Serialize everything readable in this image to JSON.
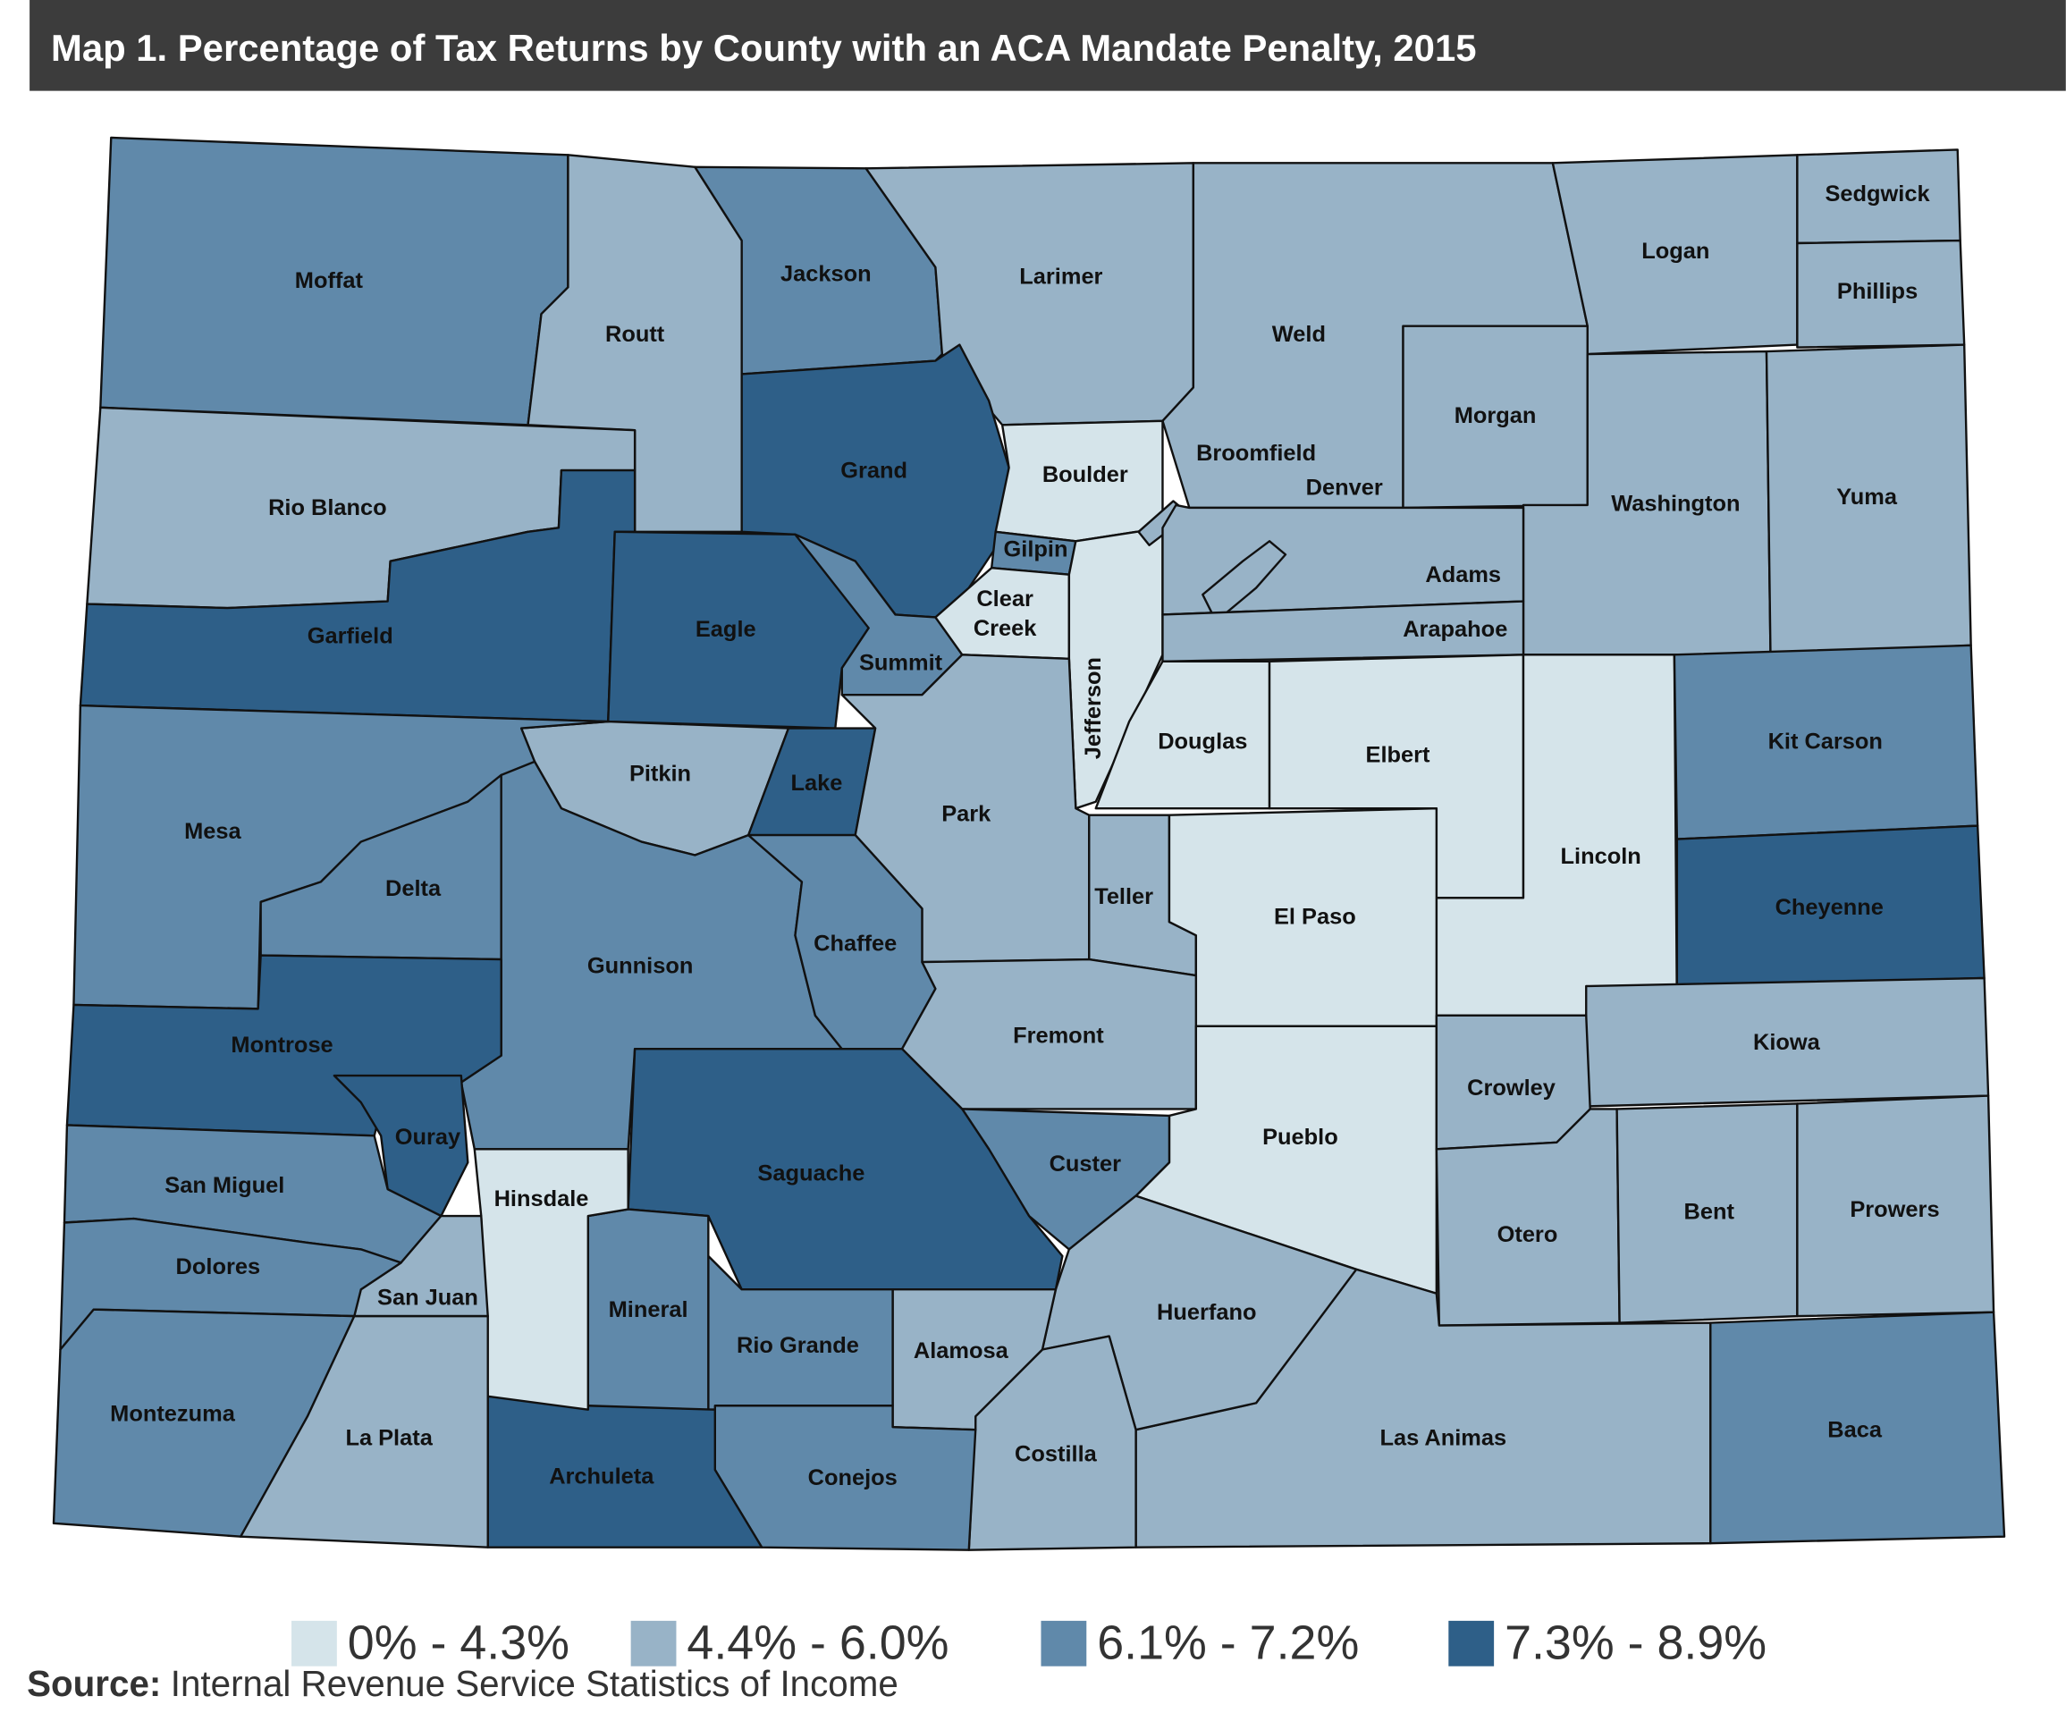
{
  "header": {
    "title": "Map 1. Percentage of Tax Returns by County with an ACA Mandate Penalty, 2015"
  },
  "legend": {
    "items": [
      {
        "label": "0% - 4.3%",
        "color": "#d5e4ea"
      },
      {
        "label": "4.4% - 6.0%",
        "color": "#98b3c7"
      },
      {
        "label": "6.1% - 7.2%",
        "color": "#6089aa"
      },
      {
        "label": "7.3% - 8.9%",
        "color": "#2e5f88"
      }
    ]
  },
  "counties": [
    {
      "name": "Moffat",
      "bin": 2
    },
    {
      "name": "Routt",
      "bin": 1
    },
    {
      "name": "Jackson",
      "bin": 2
    },
    {
      "name": "Larimer",
      "bin": 1
    },
    {
      "name": "Weld",
      "bin": 1
    },
    {
      "name": "Logan",
      "bin": 1
    },
    {
      "name": "Sedgwick",
      "bin": 1
    },
    {
      "name": "Phillips",
      "bin": 1
    },
    {
      "name": "Morgan",
      "bin": 1
    },
    {
      "name": "Washington",
      "bin": 1
    },
    {
      "name": "Yuma",
      "bin": 1
    },
    {
      "name": "Rio Blanco",
      "bin": 1
    },
    {
      "name": "Garfield",
      "bin": 3
    },
    {
      "name": "Grand",
      "bin": 3
    },
    {
      "name": "Boulder",
      "bin": 0
    },
    {
      "name": "Eagle",
      "bin": 3
    },
    {
      "name": "Summit",
      "bin": 2
    },
    {
      "name": "Gilpin",
      "bin": 2
    },
    {
      "name": "Clear Creek",
      "bin": 0
    },
    {
      "name": "Jefferson",
      "bin": 0
    },
    {
      "name": "Broomfield",
      "bin": 1
    },
    {
      "name": "Adams",
      "bin": 1
    },
    {
      "name": "Denver",
      "bin": 1
    },
    {
      "name": "Arapahoe",
      "bin": 1
    },
    {
      "name": "Douglas",
      "bin": 0
    },
    {
      "name": "Elbert",
      "bin": 0
    },
    {
      "name": "Lincoln",
      "bin": 0
    },
    {
      "name": "Kit Carson",
      "bin": 2
    },
    {
      "name": "Cheyenne",
      "bin": 3
    },
    {
      "name": "Kiowa",
      "bin": 1
    },
    {
      "name": "Pitkin",
      "bin": 1
    },
    {
      "name": "Lake",
      "bin": 3
    },
    {
      "name": "Park",
      "bin": 1
    },
    {
      "name": "Mesa",
      "bin": 2
    },
    {
      "name": "Delta",
      "bin": 2
    },
    {
      "name": "Gunnison",
      "bin": 2
    },
    {
      "name": "Chaffee",
      "bin": 2
    },
    {
      "name": "Teller",
      "bin": 1
    },
    {
      "name": "El Paso",
      "bin": 0
    },
    {
      "name": "Fremont",
      "bin": 1
    },
    {
      "name": "Pueblo",
      "bin": 0
    },
    {
      "name": "Crowley",
      "bin": 1
    },
    {
      "name": "Otero",
      "bin": 1
    },
    {
      "name": "Bent",
      "bin": 1
    },
    {
      "name": "Prowers",
      "bin": 1
    },
    {
      "name": "Baca",
      "bin": 2
    },
    {
      "name": "Las Animas",
      "bin": 1
    },
    {
      "name": "Custer",
      "bin": 2
    },
    {
      "name": "Huerfano",
      "bin": 1
    },
    {
      "name": "Costilla",
      "bin": 1
    },
    {
      "name": "Saguache",
      "bin": 3
    },
    {
      "name": "Alamosa",
      "bin": 1
    },
    {
      "name": "Rio Grande",
      "bin": 2
    },
    {
      "name": "Mineral",
      "bin": 2
    },
    {
      "name": "Conejos",
      "bin": 2
    },
    {
      "name": "Archuleta",
      "bin": 3
    },
    {
      "name": "Hinsdale",
      "bin": 0
    },
    {
      "name": "Montrose",
      "bin": 3
    },
    {
      "name": "Ouray",
      "bin": 3
    },
    {
      "name": "San Miguel",
      "bin": 2
    },
    {
      "name": "San Juan",
      "bin": 1
    },
    {
      "name": "Dolores",
      "bin": 2
    },
    {
      "name": "Montezuma",
      "bin": 2
    },
    {
      "name": "La Plata",
      "bin": 1
    }
  ],
  "source": {
    "prefix": "Source:",
    "text": "Internal Revenue Service Statistics of Income"
  }
}
